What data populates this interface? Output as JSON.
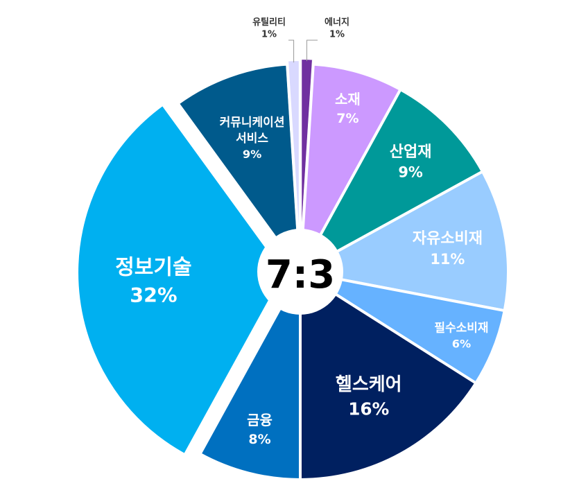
{
  "chart_data": {
    "type": "pie",
    "title": "",
    "center_label": "7:3",
    "slices": [
      {
        "label": "에너지",
        "value": 1,
        "display": "1%",
        "color": "#7030A0"
      },
      {
        "label": "소재",
        "value": 7,
        "display": "7%",
        "color": "#CC99FF"
      },
      {
        "label": "산업재",
        "value": 9,
        "display": "9%",
        "color": "#009999"
      },
      {
        "label": "자유소비재",
        "value": 11,
        "display": "11%",
        "color": "#99CCFF"
      },
      {
        "label": "필수소비재",
        "value": 6,
        "display": "6%",
        "color": "#66B2FF"
      },
      {
        "label": "헬스케어",
        "value": 16,
        "display": "16%",
        "color": "#002060"
      },
      {
        "label": "금융",
        "value": 8,
        "display": "8%",
        "color": "#0070C0"
      },
      {
        "label": "정보기술",
        "value": 32,
        "display": "32%",
        "color": "#00B0F0"
      },
      {
        "label": "커뮤니케이션\n서비스",
        "value": 9,
        "display": "9%",
        "color": "#005A8C"
      },
      {
        "label": "유틸리티",
        "value": 1,
        "display": "1%",
        "color": "#D9D9FF"
      }
    ]
  }
}
